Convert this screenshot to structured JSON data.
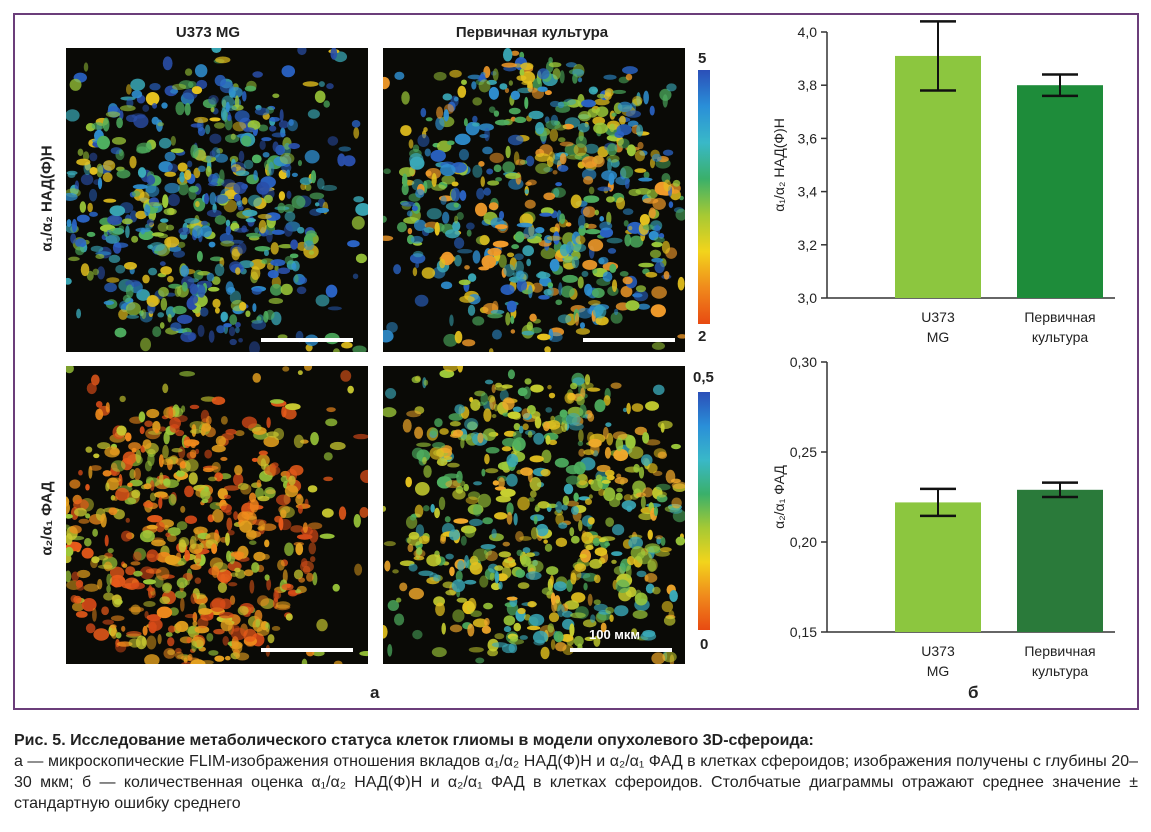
{
  "panel_a": {
    "label": "а",
    "columns": [
      "U373 MG",
      "Первичная культура"
    ],
    "rows": [
      "α₁/α₂ НАД(Ф)Н",
      "α₂/α₁ ФАД"
    ],
    "colorbars": [
      {
        "max": "5",
        "min": "2"
      },
      {
        "max": "0,5",
        "min": "0"
      }
    ],
    "scale_label": "100 мкм"
  },
  "panel_b": {
    "label": "б"
  },
  "chart_data": [
    {
      "type": "bar",
      "categories": [
        "U373 MG",
        "Первичная культура"
      ],
      "values": [
        3.91,
        3.8
      ],
      "errors": [
        0.13,
        0.04
      ],
      "colors": [
        "#8cc63f",
        "#1e8c3a"
      ],
      "ylabel": "α₁/α₂ НАД(Ф)Н",
      "ylim": [
        3.0,
        4.0
      ],
      "yticks": [
        "3,0",
        "3,2",
        "3,4",
        "3,6",
        "3,8",
        "4,0"
      ]
    },
    {
      "type": "bar",
      "categories": [
        "U373 MG",
        "Первичная культура"
      ],
      "values": [
        0.222,
        0.229
      ],
      "errors": [
        0.0075,
        0.004
      ],
      "colors": [
        "#8cc63f",
        "#2a7a3a"
      ],
      "ylabel": "α₂/α₁ ФАД",
      "ylim": [
        0.15,
        0.3
      ],
      "yticks": [
        "0,15",
        "0,20",
        "0,25",
        "0,30"
      ]
    }
  ],
  "caption": {
    "title": "Рис. 5. Исследование метаболического статуса клеток глиомы в модели опухолевого 3D-сфероида:",
    "body": "а — микроскопические FLIM-изображения отношения вкладов α₁/α₂ НАД(Ф)Н и α₂/α₁ ФАД в клетках сфероидов; изображения получены с глубины 20–30 мкм; б — количественная оценка α₁/α₂ НАД(Ф)Н и α₂/α₁ ФАД в клетках сфероидов. Столбчатые диаграммы отражают среднее значение ± стандартную ошибку среднего"
  }
}
